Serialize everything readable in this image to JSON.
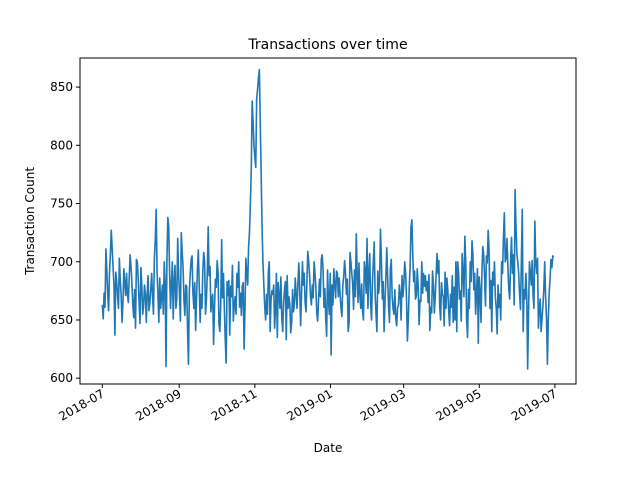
{
  "chart_data": {
    "type": "line",
    "title": "Transactions over time",
    "xlabel": "Date",
    "ylabel": "Transaction Count",
    "x_range": [
      "2018-07-01",
      "2019-06-30"
    ],
    "xlim": [
      "2018-06-13",
      "2019-07-18"
    ],
    "ylim": [
      595,
      875
    ],
    "x_ticks": [
      "2018-07",
      "2018-09",
      "2018-11",
      "2019-01",
      "2019-03",
      "2019-05",
      "2019-07"
    ],
    "y_ticks": [
      600,
      650,
      700,
      750,
      800,
      850
    ],
    "grid": false,
    "line_color": "#1f77b4",
    "values": [
      663,
      651,
      673,
      661,
      711,
      693,
      672,
      658,
      691,
      707,
      727,
      711,
      695,
      680,
      637,
      691,
      683,
      670,
      660,
      703,
      684,
      671,
      648,
      665,
      694,
      682,
      671,
      690,
      672,
      665,
      687,
      706,
      696,
      681,
      663,
      652,
      676,
      643,
      702,
      700,
      685,
      665,
      647,
      695,
      680,
      655,
      662,
      680,
      672,
      648,
      672,
      688,
      658,
      665,
      676,
      690,
      670,
      655,
      703,
      718,
      745,
      692,
      672,
      648,
      686,
      660,
      670,
      680,
      655,
      700,
      683,
      610,
      701,
      738,
      730,
      690,
      660,
      681,
      700,
      651,
      684,
      697,
      660,
      668,
      720,
      690,
      672,
      649,
      725,
      708,
      695,
      667,
      654,
      680,
      679,
      641,
      612,
      675,
      690,
      702,
      705,
      673,
      660,
      682,
      641,
      668,
      694,
      710,
      680,
      648,
      672,
      660,
      693,
      708,
      700,
      655,
      667,
      691,
      730,
      688,
      696,
      657,
      667,
      672,
      629,
      660,
      685,
      678,
      701,
      690,
      646,
      640,
      665,
      719,
      669,
      690,
      660,
      633,
      613,
      683,
      671,
      684,
      637,
      679,
      670,
      697,
      649,
      663,
      670,
      655,
      690,
      678,
      700,
      661,
      673,
      654,
      679,
      682,
      625,
      660,
      703,
      690,
      680,
      713,
      725,
      750,
      780,
      838,
      820,
      800,
      790,
      781,
      840,
      848,
      858,
      865,
      820,
      776,
      730,
      700,
      680,
      661,
      650,
      672,
      655,
      691,
      700,
      640,
      667,
      675,
      672,
      680,
      643,
      660,
      690,
      635,
      682,
      671,
      660,
      687,
      652,
      640,
      664,
      676,
      683,
      633,
      688,
      660,
      670,
      663,
      639,
      648,
      676,
      657,
      663,
      686,
      672,
      660,
      682,
      699,
      676,
      645,
      672,
      700,
      680,
      690,
      665,
      657,
      683,
      709,
      700,
      688,
      670,
      663,
      680,
      669,
      700,
      690,
      677,
      656,
      649,
      668,
      685,
      670,
      702,
      706,
      693,
      661,
      677,
      651,
      636,
      693,
      667,
      655,
      690,
      620,
      680,
      663,
      694,
      681,
      669,
      692,
      690,
      670,
      686,
      672,
      660,
      653,
      680,
      687,
      701,
      690,
      672,
      685,
      640,
      648,
      708,
      700,
      690,
      681,
      659,
      693,
      670,
      724,
      690,
      665,
      699,
      672,
      660,
      681,
      658,
      650,
      700,
      692,
      673,
      720,
      660,
      690,
      707,
      665,
      650,
      682,
      700,
      717,
      673,
      655,
      640,
      692,
      673,
      684,
      728,
      702,
      668,
      683,
      640,
      665,
      687,
      712,
      686,
      662,
      648,
      694,
      702,
      670,
      660,
      655,
      676,
      651,
      645,
      660,
      663,
      680,
      672,
      650,
      688,
      670,
      681,
      700,
      690,
      668,
      632,
      651,
      677,
      696,
      730,
      736,
      705,
      683,
      692,
      668,
      671,
      694,
      679,
      646,
      667,
      666,
      700,
      673,
      690,
      679,
      688,
      675,
      683,
      665,
      689,
      641,
      661,
      656,
      692,
      681,
      656,
      670,
      689,
      707,
      690,
      701,
      661,
      650,
      682,
      672,
      670,
      645,
      691,
      660,
      686,
      676,
      658,
      645,
      672,
      661,
      688,
      648,
      678,
      650,
      700,
      640,
      700,
      691,
      668,
      675,
      649,
      707,
      690,
      670,
      722,
      700,
      650,
      635,
      676,
      660,
      700,
      683,
      718,
      706,
      676,
      690,
      655,
      673,
      694,
      630,
      687,
      675,
      648,
      690,
      713,
      706,
      687,
      662,
      705,
      699,
      727,
      710,
      660,
      684,
      640,
      691,
      680,
      700,
      670,
      660,
      638,
      680,
      661,
      672,
      650,
      700,
      690,
      720,
      742,
      700,
      703,
      720,
      695,
      676,
      668,
      700,
      721,
      690,
      706,
      663,
      762,
      730,
      706,
      700,
      690,
      672,
      659,
      700,
      745,
      640,
      676,
      668,
      690,
      671,
      608,
      657,
      700,
      690,
      680,
      701,
      672,
      660,
      735,
      700,
      690,
      703,
      643,
      660,
      668,
      640,
      651,
      662,
      676,
      700,
      670,
      652,
      612,
      651,
      673,
      686,
      702,
      695,
      705,
      704
    ]
  }
}
